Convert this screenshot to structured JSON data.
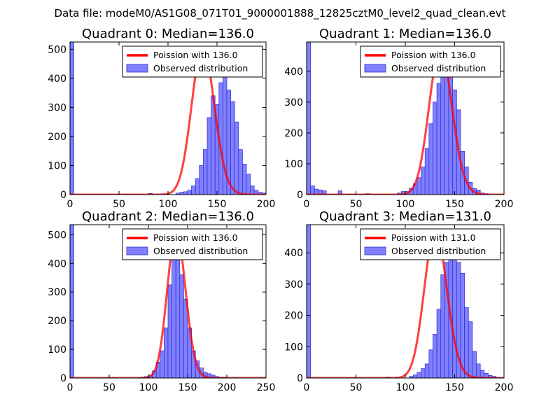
{
  "figure": {
    "suptitle": "Data file: modeM0/AS1G08_071T01_9000001888_12825cztM0_level2_quad_clean.evt",
    "colors": {
      "bar_fill": "#8080ff",
      "bar_edge": "#2a2ad0",
      "poisson": "#ff0000"
    }
  },
  "chart_data": [
    {
      "type": "bar",
      "title": "Quadrant 0: Median=136.0",
      "xlim": [
        0,
        200
      ],
      "ylim": [
        0,
        525
      ],
      "xticks": [
        0,
        50,
        100,
        150,
        200
      ],
      "yticks": [
        0,
        100,
        200,
        300,
        400,
        500
      ],
      "bins": {
        "start": 0,
        "width": 4,
        "values": [
          525,
          0,
          0,
          0,
          0,
          0,
          0,
          0,
          0,
          0,
          0,
          0,
          0,
          0,
          0,
          0,
          0,
          0,
          0,
          0,
          4,
          0,
          0,
          0,
          0,
          0,
          0,
          5,
          8,
          10,
          15,
          30,
          55,
          100,
          155,
          265,
          340,
          310,
          385,
          430,
          360,
          320,
          250,
          155,
          105,
          70,
          30,
          15,
          8,
          5,
          0
        ]
      },
      "poisson": {
        "mean": 136.0,
        "peak": 505
      },
      "legend": {
        "line_label": "Poission with 136.0",
        "bar_label": "Observed distribution",
        "loc": "upper right"
      }
    },
    {
      "type": "bar",
      "title": "Quadrant 1: Median=136.0",
      "xlim": [
        0,
        200
      ],
      "ylim": [
        0,
        495
      ],
      "xticks": [
        0,
        50,
        100,
        150,
        200
      ],
      "yticks": [
        0,
        100,
        200,
        300,
        400
      ],
      "bins": {
        "start": 0,
        "width": 4,
        "values": [
          495,
          28,
          18,
          15,
          12,
          0,
          0,
          0,
          12,
          0,
          0,
          0,
          0,
          0,
          0,
          3,
          0,
          0,
          0,
          0,
          0,
          0,
          0,
          5,
          10,
          10,
          20,
          35,
          55,
          90,
          150,
          230,
          300,
          360,
          390,
          480,
          415,
          340,
          275,
          140,
          90,
          40,
          20,
          15,
          5,
          3,
          0,
          0,
          0,
          0
        ]
      },
      "poisson": {
        "mean": 136.0,
        "peak": 470
      },
      "legend": {
        "line_label": "Poission with 136.0",
        "bar_label": "Observed distribution",
        "loc": "upper right"
      }
    },
    {
      "type": "bar",
      "title": "Quadrant 2: Median=136.0",
      "xlim": [
        0,
        250
      ],
      "ylim": [
        0,
        535
      ],
      "xticks": [
        0,
        50,
        100,
        150,
        200,
        250
      ],
      "yticks": [
        0,
        100,
        200,
        300,
        400,
        500
      ],
      "bins": {
        "start": 0,
        "width": 5,
        "values": [
          535,
          0,
          0,
          0,
          0,
          0,
          0,
          0,
          0,
          0,
          0,
          0,
          0,
          0,
          0,
          0,
          0,
          0,
          3,
          5,
          10,
          25,
          55,
          95,
          175,
          325,
          510,
          410,
          360,
          275,
          175,
          95,
          60,
          35,
          20,
          15,
          10,
          5,
          3,
          3,
          0,
          0,
          0,
          0,
          0,
          0,
          0,
          0,
          0,
          0
        ]
      },
      "poisson": {
        "mean": 136.0,
        "peak": 510
      },
      "legend": {
        "line_label": "Poission with 136.0",
        "bar_label": "Observed distribution",
        "loc": "upper right"
      }
    },
    {
      "type": "bar",
      "title": "Quadrant 3: Median=131.0",
      "xlim": [
        0,
        200
      ],
      "ylim": [
        0,
        490
      ],
      "xticks": [
        0,
        50,
        100,
        150,
        200
      ],
      "yticks": [
        0,
        100,
        200,
        300,
        400
      ],
      "bins": {
        "start": 0,
        "width": 4,
        "values": [
          490,
          0,
          0,
          0,
          0,
          0,
          0,
          0,
          0,
          0,
          0,
          0,
          0,
          0,
          0,
          0,
          0,
          0,
          0,
          0,
          3,
          0,
          0,
          0,
          0,
          0,
          5,
          10,
          18,
          30,
          45,
          90,
          140,
          220,
          330,
          370,
          405,
          460,
          370,
          335,
          225,
          180,
          85,
          45,
          25,
          15,
          8,
          5,
          0,
          0
        ]
      },
      "poisson": {
        "mean": 131.0,
        "peak": 470
      },
      "legend": {
        "line_label": "Poission with 131.0",
        "bar_label": "Observed distribution",
        "loc": "upper right"
      }
    }
  ]
}
